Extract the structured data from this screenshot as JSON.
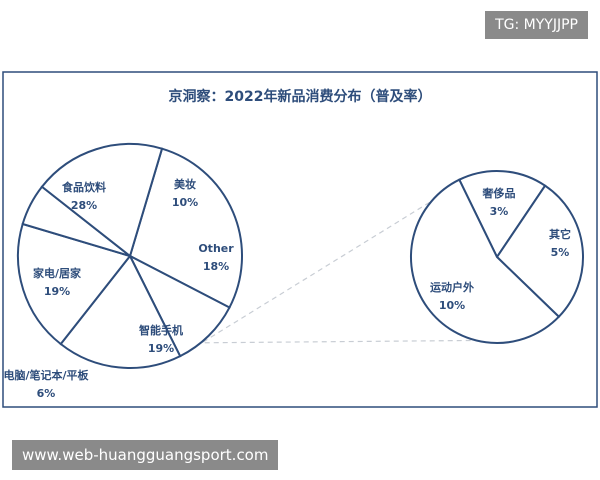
{
  "colors": {
    "primary": "#2e4d7b",
    "connector": "#c8cdd4",
    "watermark_bg": "#8a8a8a"
  },
  "watermarks": {
    "tg": "TG: MYYJJPP",
    "web": "www.web-huangguangsport.com"
  },
  "chart_data": {
    "type": "pie",
    "title": "京洞察：2022年新品消费分布（普及率）",
    "main_pie": {
      "slices": [
        {
          "label": "食品饮料",
          "value": 28
        },
        {
          "label": "美妆",
          "value": 10
        },
        {
          "label": "Other",
          "value": 18
        },
        {
          "label": "智能手机",
          "value": 19
        },
        {
          "label": "电脑/笔记本/平板",
          "value": 6
        },
        {
          "label": "家电/居家",
          "value": 19
        }
      ]
    },
    "breakout_pie": {
      "parent": "Other",
      "slices": [
        {
          "label": "奢侈品",
          "value": 3
        },
        {
          "label": "其它",
          "value": 5
        },
        {
          "label": "运动户外",
          "value": 10
        }
      ]
    },
    "value_suffix": "%"
  }
}
